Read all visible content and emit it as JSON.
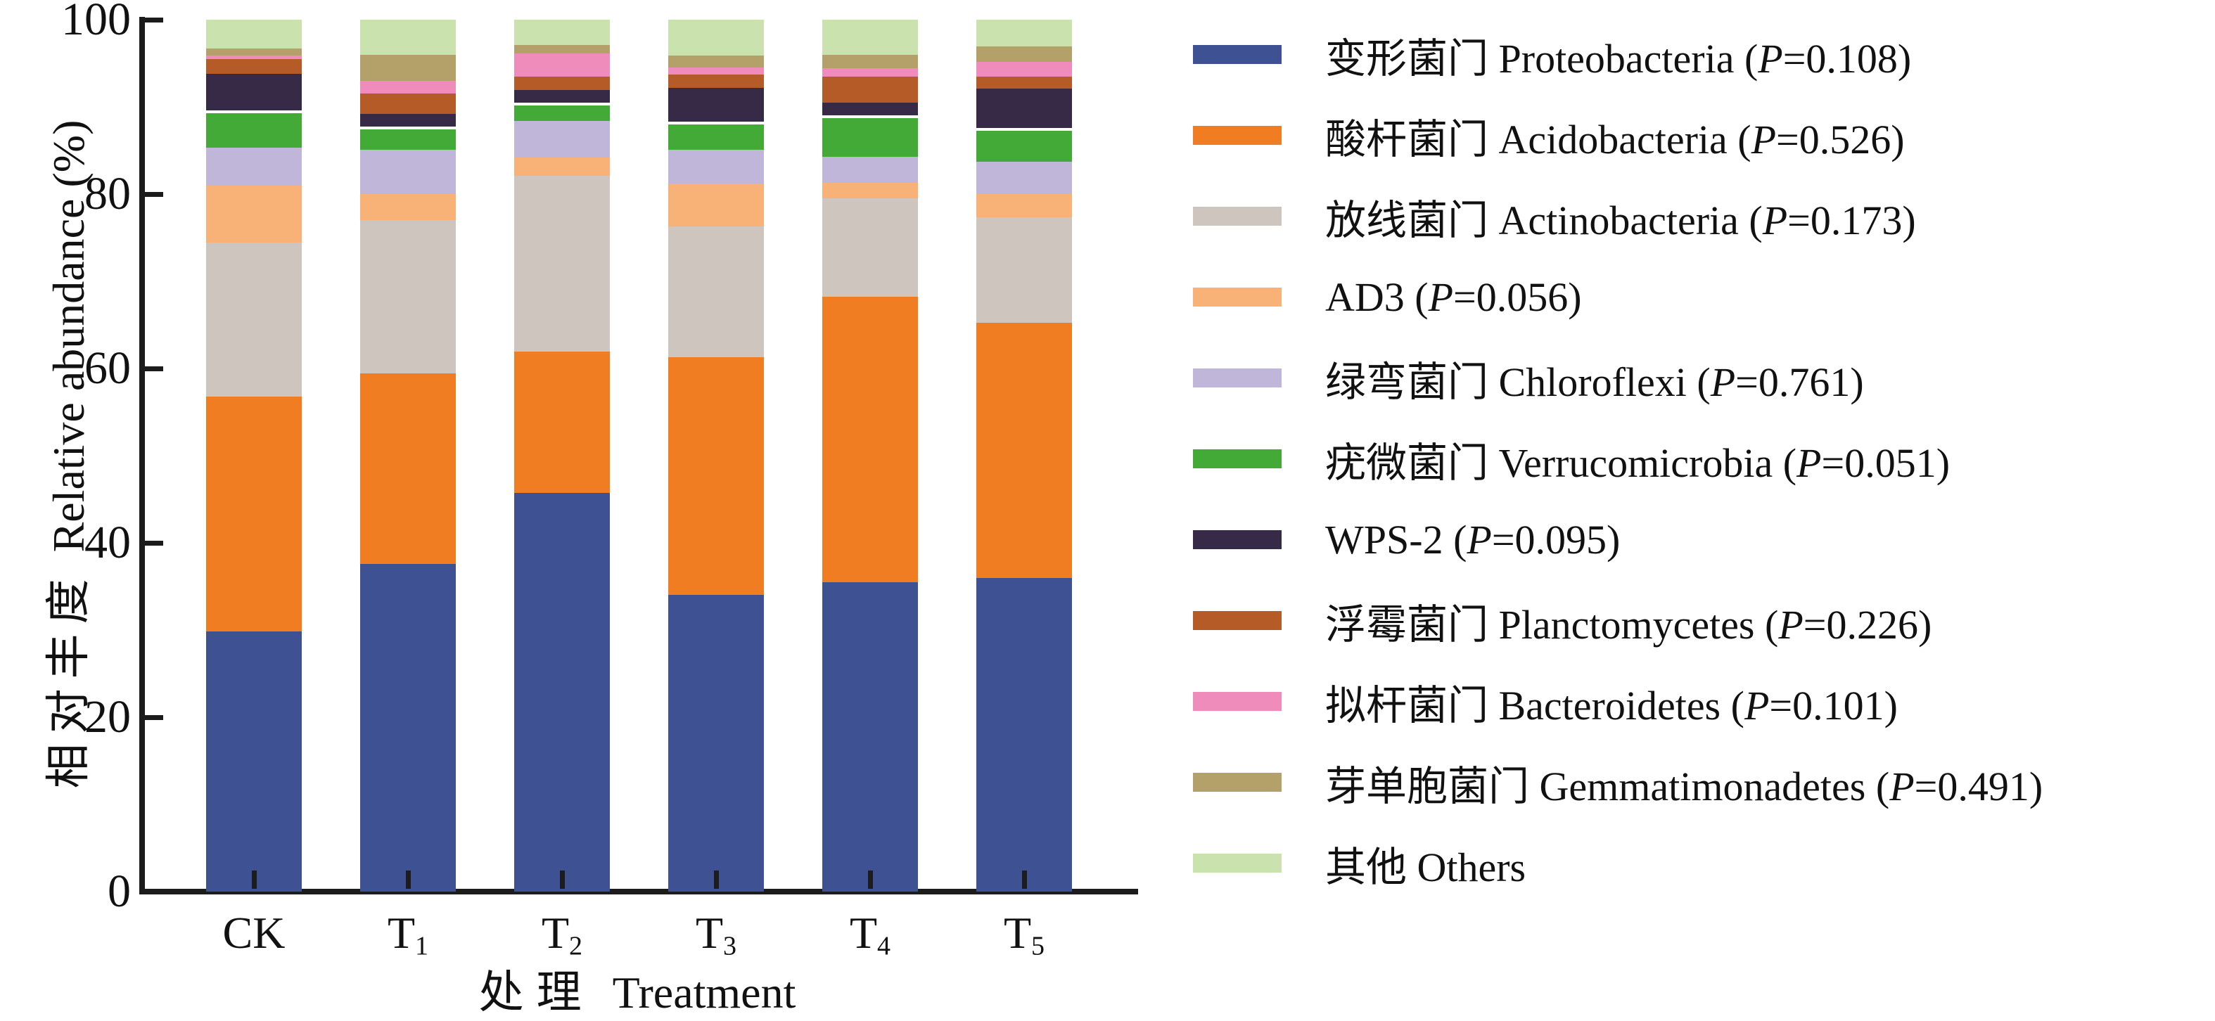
{
  "y_axis": {
    "title_zh": "相对丰度",
    "title_en": "Relative abundance (%)",
    "ticks": [
      0,
      20,
      40,
      60,
      80,
      100
    ],
    "min": 0,
    "max": 100
  },
  "x_axis": {
    "title_zh": "处理",
    "title_en": "Treatment",
    "tick_labels": [
      {
        "base": "CK",
        "sub": ""
      },
      {
        "base": "T",
        "sub": "1"
      },
      {
        "base": "T",
        "sub": "2"
      },
      {
        "base": "T",
        "sub": "3"
      },
      {
        "base": "T",
        "sub": "4"
      },
      {
        "base": "T",
        "sub": "5"
      }
    ]
  },
  "chart_data": {
    "type": "bar",
    "stacked": true,
    "grid": false,
    "legend_position": "right",
    "categories": [
      "CK",
      "T1",
      "T2",
      "T3",
      "T4",
      "T5"
    ],
    "ylim": [
      0,
      100
    ],
    "ylabel": "相对丰度 Relative abundance (%)",
    "xlabel": "处理 Treatment",
    "series": [
      {
        "name_zh": "变形菌门",
        "name_en": "Proteobacteria",
        "p_text": "P=0.108",
        "color": "#3E5192",
        "values": [
          29.8,
          37.6,
          45.7,
          34.0,
          35.5,
          36.0
        ]
      },
      {
        "name_zh": "酸杆菌门",
        "name_en": "Acidobacteria",
        "p_text": "P=0.526",
        "color": "#F07D22",
        "values": [
          27.0,
          21.8,
          16.2,
          27.3,
          32.7,
          29.2
        ]
      },
      {
        "name_zh": "放线菌门",
        "name_en": "Actinobacteria",
        "p_text": "P=0.173",
        "color": "#CEC5BE",
        "values": [
          17.6,
          17.6,
          20.2,
          15.0,
          11.3,
          12.1
        ]
      },
      {
        "name_zh": "",
        "name_en": "AD3",
        "p_text": "P=0.056",
        "color": "#F8B277",
        "values": [
          6.6,
          3.0,
          2.1,
          4.9,
          1.8,
          2.7
        ]
      },
      {
        "name_zh": "绿弯菌门",
        "name_en": "Chloroflexi",
        "p_text": "P=0.761",
        "color": "#C0B6D9",
        "values": [
          4.3,
          5.1,
          4.2,
          3.9,
          3.0,
          3.7
        ]
      },
      {
        "name_zh": "疣微菌门",
        "name_en": "Verrucomicrobia",
        "p_text": "P=0.051",
        "color": "#44AA37",
        "values": [
          4.3,
          2.6,
          2.1,
          3.2,
          4.7,
          3.9
        ]
      },
      {
        "name_zh": "",
        "name_en": "WPS-2",
        "p_text": "P=0.095",
        "color": "#362A47",
        "values": [
          4.2,
          1.5,
          1.4,
          3.9,
          1.5,
          4.5
        ]
      },
      {
        "name_zh": "浮霉菌门",
        "name_en": "Planctomycetes",
        "p_text": "P=0.226",
        "color": "#B45B27",
        "values": [
          1.7,
          2.3,
          1.6,
          1.5,
          3.0,
          1.4
        ]
      },
      {
        "name_zh": "拟杆菌门",
        "name_en": "Bacteroidetes",
        "p_text": "P=0.101",
        "color": "#F08CBB",
        "values": [
          0.4,
          1.5,
          2.6,
          0.8,
          0.9,
          1.7
        ]
      },
      {
        "name_zh": "芽单胞菌门",
        "name_en": "Gemmatimonadetes",
        "p_text": "P=0.491",
        "color": "#B3A169",
        "values": [
          0.8,
          3.0,
          1.0,
          1.4,
          1.6,
          1.7
        ]
      },
      {
        "name_zh": "其他",
        "name_en": "Others",
        "p_text": "",
        "color": "#C9E2AE",
        "values": [
          3.3,
          4.0,
          2.9,
          4.1,
          4.0,
          3.1
        ]
      }
    ]
  }
}
